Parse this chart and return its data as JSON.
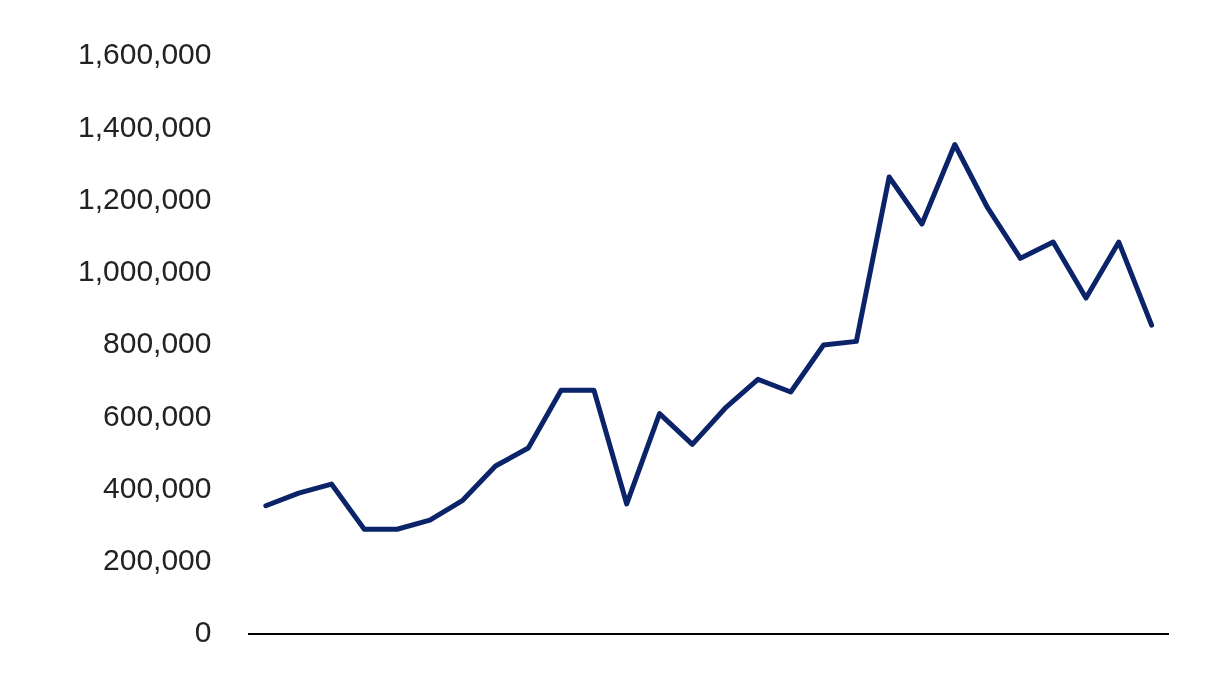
{
  "chart_data": {
    "type": "line",
    "categories": [
      null,
      null,
      null,
      null,
      null,
      null,
      null,
      null,
      null,
      null,
      null,
      null,
      null,
      null,
      null,
      null,
      null,
      null,
      null,
      null,
      null,
      null,
      null,
      null,
      null,
      null,
      null,
      null
    ],
    "series": [
      {
        "color": "#0b2469",
        "values": [
          355000,
          390000,
          415000,
          290000,
          290000,
          315000,
          370000,
          465000,
          515000,
          675000,
          675000,
          360000,
          610000,
          525000,
          625000,
          705000,
          670000,
          800000,
          810000,
          1265000,
          1135000,
          1355000,
          1180000,
          1040000,
          1085000,
          930000,
          1085000,
          855000
        ]
      }
    ],
    "ylim": [
      0,
      1600000
    ],
    "yticks": [
      0,
      {
        "value": 200000,
        "label": "200,000"
      },
      {
        "value": 400000,
        "label": "400,000"
      },
      {
        "value": 600000,
        "label": "600,000"
      },
      {
        "value": 800000,
        "label": "800,000"
      },
      {
        "value": 1000000,
        "label": "1,000,000"
      },
      {
        "value": 1200000,
        "label": "1,200,000"
      },
      {
        "value": 1400000,
        "label": "1,400,000"
      },
      {
        "value": 1600000,
        "label": "1,600,000"
      }
    ],
    "grid": false,
    "legend": false,
    "marker": "none",
    "line_style": "solid"
  }
}
